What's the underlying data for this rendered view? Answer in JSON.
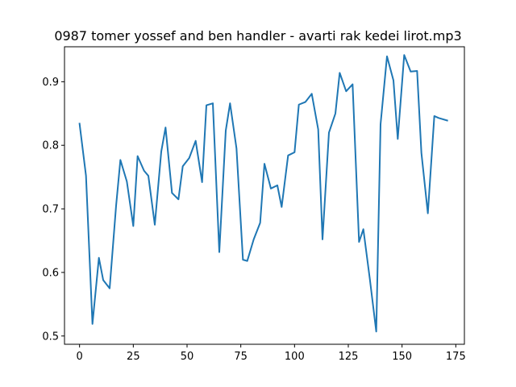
{
  "chart_data": {
    "type": "line",
    "title": "0987 tomer yossef and ben handler - avarti rak kedei lirot.mp3",
    "xlabel": "",
    "ylabel": "",
    "xlim": [
      -7,
      179
    ],
    "ylim": [
      0.487,
      0.955
    ],
    "xticks": [
      0,
      25,
      50,
      75,
      100,
      125,
      150,
      175
    ],
    "yticks": [
      0.5,
      0.6,
      0.7,
      0.8,
      0.9
    ],
    "ytick_labels": [
      "0.5",
      "0.6",
      "0.7",
      "0.8",
      "0.9"
    ],
    "grid": false,
    "line_color": "#1f77b4",
    "series": [
      {
        "x": [
          0,
          3,
          6,
          9,
          11,
          14,
          17,
          19,
          22,
          25,
          27,
          30,
          32,
          35,
          38,
          40,
          43,
          46,
          48,
          51,
          54,
          57,
          59,
          62,
          65,
          68,
          70,
          73,
          76,
          78,
          81,
          84,
          86,
          89,
          92,
          94,
          97,
          100,
          102,
          105,
          108,
          111,
          113,
          116,
          119,
          121,
          124,
          127,
          130,
          132,
          135,
          138,
          140,
          143,
          146,
          148,
          151,
          154,
          157,
          159,
          162,
          165,
          167,
          171
        ],
        "y": [
          0.834,
          0.752,
          0.519,
          0.623,
          0.588,
          0.575,
          0.705,
          0.777,
          0.743,
          0.673,
          0.783,
          0.76,
          0.752,
          0.675,
          0.79,
          0.828,
          0.725,
          0.715,
          0.767,
          0.78,
          0.807,
          0.742,
          0.863,
          0.866,
          0.632,
          0.823,
          0.866,
          0.795,
          0.62,
          0.618,
          0.652,
          0.678,
          0.771,
          0.732,
          0.737,
          0.703,
          0.784,
          0.789,
          0.864,
          0.868,
          0.881,
          0.825,
          0.652,
          0.82,
          0.85,
          0.914,
          0.885,
          0.896,
          0.648,
          0.668,
          0.59,
          0.507,
          0.833,
          0.94,
          0.902,
          0.81,
          0.942,
          0.916,
          0.917,
          0.788,
          0.693,
          0.846,
          0.843,
          0.839
        ]
      }
    ]
  }
}
